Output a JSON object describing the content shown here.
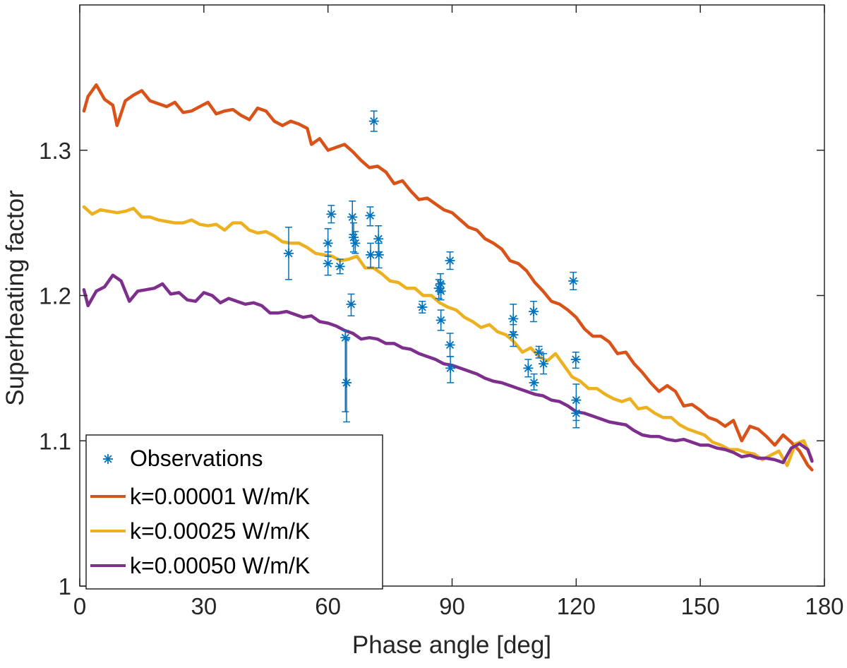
{
  "chart_data": {
    "type": "line",
    "title": "",
    "xlabel": "Phase angle [deg]",
    "ylabel": "Superheating factor",
    "xlim": [
      0,
      180
    ],
    "ylim": [
      1.0,
      1.4
    ],
    "xticks": [
      0,
      30,
      60,
      90,
      120,
      150,
      180
    ],
    "xtick_labels": [
      "0",
      "30",
      "60",
      "90",
      "120",
      "150",
      "180"
    ],
    "yticks": [
      1.0,
      1.1,
      1.2,
      1.3
    ],
    "ytick_labels": [
      "1",
      "1.1",
      "1.2",
      "1.3"
    ],
    "grid": false,
    "legend_position": "bottom-left",
    "observations": {
      "name": "Observations",
      "color": "#0072BD",
      "points": [
        {
          "x": 50.5,
          "y": 1.229,
          "lo": 1.211,
          "hi": 1.247
        },
        {
          "x": 60.0,
          "y": 1.236,
          "lo": 1.227,
          "hi": 1.246
        },
        {
          "x": 60.0,
          "y": 1.222,
          "lo": 1.214,
          "hi": 1.23
        },
        {
          "x": 60.8,
          "y": 1.256,
          "lo": 1.25,
          "hi": 1.262
        },
        {
          "x": 62.9,
          "y": 1.22,
          "lo": 1.215,
          "hi": 1.225
        },
        {
          "x": 64.2,
          "y": 1.171,
          "lo": 1.12,
          "hi": 1.176
        },
        {
          "x": 64.5,
          "y": 1.14,
          "lo": 1.113,
          "hi": 1.17
        },
        {
          "x": 65.6,
          "y": 1.194,
          "lo": 1.186,
          "hi": 1.201
        },
        {
          "x": 65.9,
          "y": 1.254,
          "lo": 1.242,
          "hi": 1.265
        },
        {
          "x": 66.2,
          "y": 1.24,
          "lo": 1.23,
          "hi": 1.25
        },
        {
          "x": 66.6,
          "y": 1.236,
          "lo": 1.229,
          "hi": 1.244
        },
        {
          "x": 70.2,
          "y": 1.255,
          "lo": 1.248,
          "hi": 1.261
        },
        {
          "x": 70.3,
          "y": 1.228,
          "lo": 1.219,
          "hi": 1.236
        },
        {
          "x": 71.1,
          "y": 1.32,
          "lo": 1.313,
          "hi": 1.327
        },
        {
          "x": 72.2,
          "y": 1.239,
          "lo": 1.23,
          "hi": 1.248
        },
        {
          "x": 72.3,
          "y": 1.228,
          "lo": 1.219,
          "hi": 1.236
        },
        {
          "x": 82.8,
          "y": 1.192,
          "lo": 1.188,
          "hi": 1.196
        },
        {
          "x": 86.8,
          "y": 1.205,
          "lo": 1.198,
          "hi": 1.211
        },
        {
          "x": 87.2,
          "y": 1.208,
          "lo": 1.202,
          "hi": 1.215
        },
        {
          "x": 87.3,
          "y": 1.203,
          "lo": 1.197,
          "hi": 1.209
        },
        {
          "x": 87.3,
          "y": 1.183,
          "lo": 1.176,
          "hi": 1.19
        },
        {
          "x": 89.5,
          "y": 1.224,
          "lo": 1.218,
          "hi": 1.23
        },
        {
          "x": 89.5,
          "y": 1.166,
          "lo": 1.158,
          "hi": 1.174
        },
        {
          "x": 89.6,
          "y": 1.15,
          "lo": 1.14,
          "hi": 1.158
        },
        {
          "x": 104.8,
          "y": 1.184,
          "lo": 1.175,
          "hi": 1.194
        },
        {
          "x": 104.8,
          "y": 1.173,
          "lo": 1.165,
          "hi": 1.18
        },
        {
          "x": 108.4,
          "y": 1.15,
          "lo": 1.144,
          "hi": 1.156
        },
        {
          "x": 109.7,
          "y": 1.189,
          "lo": 1.182,
          "hi": 1.196
        },
        {
          "x": 109.8,
          "y": 1.14,
          "lo": 1.135,
          "hi": 1.146
        },
        {
          "x": 111.0,
          "y": 1.161,
          "lo": 1.157,
          "hi": 1.165
        },
        {
          "x": 112.1,
          "y": 1.153,
          "lo": 1.146,
          "hi": 1.16
        },
        {
          "x": 119.3,
          "y": 1.21,
          "lo": 1.204,
          "hi": 1.216
        },
        {
          "x": 119.9,
          "y": 1.156,
          "lo": 1.15,
          "hi": 1.161
        },
        {
          "x": 120.0,
          "y": 1.128,
          "lo": 1.114,
          "hi": 1.139
        },
        {
          "x": 120.0,
          "y": 1.119,
          "lo": 1.109,
          "hi": 1.128
        }
      ]
    },
    "series": [
      {
        "name": "k=0.00001 W/m/K",
        "color": "#D95319",
        "x": [
          1,
          2,
          4,
          6,
          8,
          9,
          11,
          13,
          15,
          17,
          19,
          21,
          23,
          25,
          27,
          29,
          31,
          33,
          35,
          37,
          39,
          41,
          43,
          45,
          47,
          49,
          51,
          53,
          55,
          56,
          58,
          60,
          62,
          64,
          66,
          68,
          70,
          72,
          74,
          76,
          78,
          80,
          82,
          84,
          86,
          88,
          90,
          92,
          94,
          96,
          98,
          100,
          102,
          104,
          106,
          108,
          110,
          112,
          114,
          116,
          118,
          120,
          122,
          124,
          126,
          128,
          130,
          132,
          134,
          136,
          138,
          140,
          142,
          144,
          146,
          148,
          150,
          152,
          154,
          156,
          158,
          160,
          162,
          164,
          166,
          168,
          170,
          172,
          174,
          176,
          177
        ],
        "values": [
          1.327,
          1.337,
          1.345,
          1.335,
          1.331,
          1.317,
          1.334,
          1.338,
          1.341,
          1.334,
          1.332,
          1.33,
          1.333,
          1.326,
          1.327,
          1.33,
          1.333,
          1.325,
          1.327,
          1.328,
          1.324,
          1.321,
          1.329,
          1.327,
          1.32,
          1.317,
          1.32,
          1.318,
          1.315,
          1.304,
          1.308,
          1.3,
          1.302,
          1.304,
          1.299,
          1.293,
          1.288,
          1.289,
          1.285,
          1.277,
          1.279,
          1.272,
          1.266,
          1.267,
          1.263,
          1.259,
          1.257,
          1.252,
          1.247,
          1.245,
          1.239,
          1.236,
          1.232,
          1.224,
          1.222,
          1.217,
          1.209,
          1.203,
          1.196,
          1.194,
          1.19,
          1.185,
          1.177,
          1.172,
          1.172,
          1.168,
          1.16,
          1.161,
          1.153,
          1.147,
          1.14,
          1.134,
          1.138,
          1.134,
          1.124,
          1.125,
          1.121,
          1.116,
          1.114,
          1.11,
          1.114,
          1.1,
          1.11,
          1.108,
          1.103,
          1.097,
          1.104,
          1.099,
          1.093,
          1.083,
          1.08
        ]
      },
      {
        "name": "k=0.00025 W/m/K",
        "color": "#EDB120",
        "x": [
          1,
          3,
          5,
          7,
          9,
          11,
          13,
          15,
          17,
          19,
          21,
          23,
          25,
          27,
          29,
          31,
          33,
          35,
          37,
          39,
          41,
          43,
          45,
          47,
          49,
          51,
          53,
          55,
          57,
          59,
          61,
          63,
          65,
          67,
          69,
          71,
          73,
          75,
          77,
          79,
          81,
          83,
          85,
          87,
          89,
          91,
          93,
          95,
          97,
          99,
          101,
          103,
          105,
          107,
          109,
          111,
          113,
          115,
          117,
          119,
          121,
          123,
          125,
          127,
          129,
          131,
          133,
          135,
          137,
          139,
          141,
          143,
          145,
          147,
          149,
          151,
          153,
          155,
          157,
          159,
          161,
          163,
          165,
          167,
          169,
          171,
          173,
          175,
          177
        ],
        "values": [
          1.261,
          1.256,
          1.259,
          1.258,
          1.257,
          1.258,
          1.26,
          1.254,
          1.254,
          1.252,
          1.251,
          1.25,
          1.25,
          1.252,
          1.249,
          1.248,
          1.249,
          1.245,
          1.25,
          1.25,
          1.245,
          1.243,
          1.244,
          1.241,
          1.237,
          1.236,
          1.236,
          1.233,
          1.229,
          1.228,
          1.227,
          1.224,
          1.225,
          1.227,
          1.219,
          1.219,
          1.215,
          1.21,
          1.209,
          1.205,
          1.205,
          1.2,
          1.2,
          1.195,
          1.192,
          1.19,
          1.185,
          1.182,
          1.178,
          1.18,
          1.175,
          1.173,
          1.168,
          1.161,
          1.164,
          1.158,
          1.155,
          1.16,
          1.152,
          1.144,
          1.141,
          1.136,
          1.136,
          1.132,
          1.129,
          1.127,
          1.129,
          1.122,
          1.123,
          1.119,
          1.116,
          1.116,
          1.111,
          1.108,
          1.106,
          1.104,
          1.099,
          1.097,
          1.094,
          1.094,
          1.092,
          1.091,
          1.087,
          1.09,
          1.093,
          1.083,
          1.098,
          1.1,
          1.087
        ]
      },
      {
        "name": "k=0.00050 W/m/K",
        "color": "#7E2F8E",
        "x": [
          1,
          2,
          4,
          6,
          8,
          10,
          12,
          14,
          16,
          18,
          20,
          22,
          24,
          26,
          28,
          30,
          32,
          34,
          36,
          38,
          40,
          42,
          44,
          46,
          48,
          50,
          52,
          54,
          56,
          58,
          60,
          62,
          64,
          66,
          68,
          70,
          72,
          74,
          76,
          78,
          80,
          82,
          84,
          86,
          88,
          90,
          92,
          94,
          96,
          98,
          100,
          102,
          104,
          106,
          108,
          110,
          112,
          114,
          116,
          118,
          120,
          122,
          124,
          126,
          128,
          130,
          132,
          134,
          136,
          138,
          140,
          142,
          144,
          146,
          148,
          150,
          152,
          154,
          156,
          158,
          160,
          162,
          164,
          166,
          168,
          170,
          172,
          174,
          176,
          177
        ],
        "values": [
          1.204,
          1.193,
          1.203,
          1.206,
          1.214,
          1.21,
          1.196,
          1.203,
          1.204,
          1.205,
          1.208,
          1.201,
          1.202,
          1.197,
          1.196,
          1.202,
          1.2,
          1.195,
          1.198,
          1.196,
          1.194,
          1.195,
          1.193,
          1.188,
          1.188,
          1.189,
          1.187,
          1.185,
          1.186,
          1.182,
          1.181,
          1.179,
          1.176,
          1.174,
          1.17,
          1.171,
          1.17,
          1.167,
          1.167,
          1.164,
          1.163,
          1.16,
          1.158,
          1.156,
          1.153,
          1.152,
          1.15,
          1.148,
          1.146,
          1.143,
          1.141,
          1.14,
          1.138,
          1.136,
          1.134,
          1.132,
          1.131,
          1.128,
          1.127,
          1.124,
          1.12,
          1.119,
          1.117,
          1.115,
          1.113,
          1.112,
          1.111,
          1.107,
          1.104,
          1.103,
          1.103,
          1.101,
          1.1,
          1.101,
          1.099,
          1.097,
          1.097,
          1.095,
          1.094,
          1.092,
          1.089,
          1.09,
          1.088,
          1.088,
          1.087,
          1.085,
          1.095,
          1.098,
          1.094,
          1.086
        ]
      }
    ]
  }
}
